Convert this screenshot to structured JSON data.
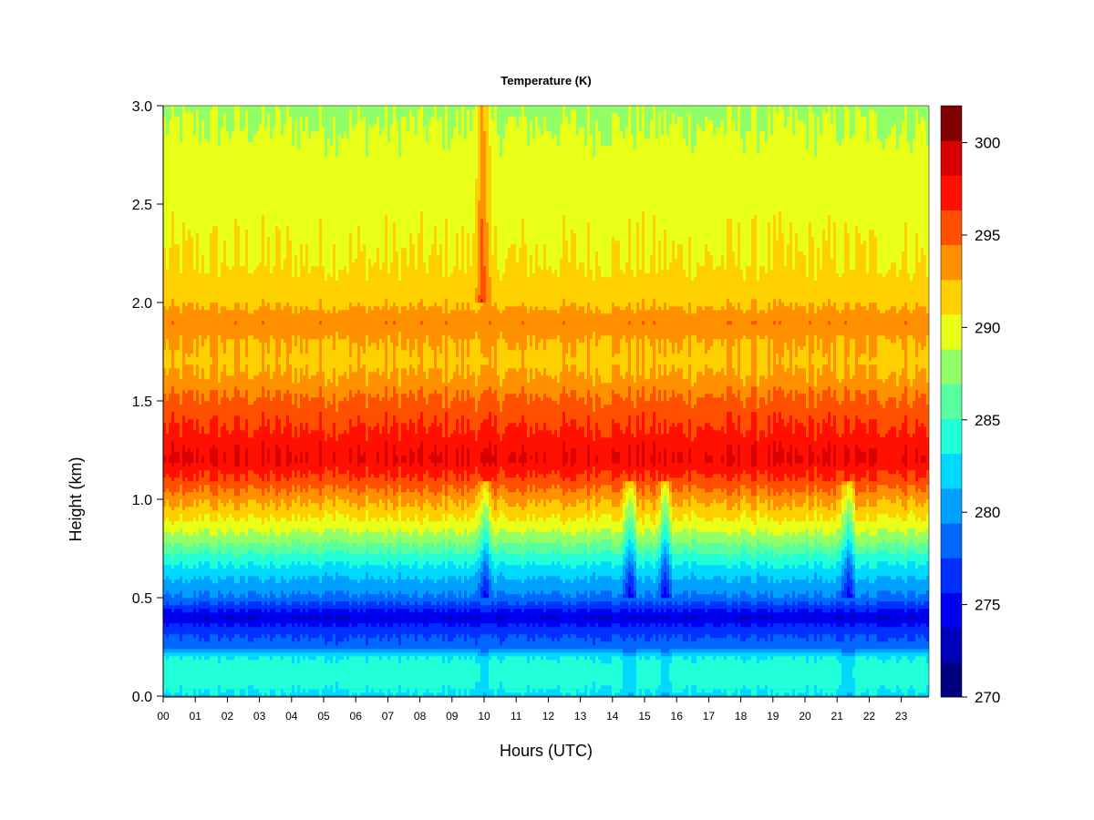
{
  "chart_data": {
    "type": "heatmap",
    "title": "Temperature (K)",
    "xlabel": "Hours (UTC)",
    "ylabel": "Height (km)",
    "x_ticks": [
      "00",
      "01",
      "02",
      "03",
      "04",
      "05",
      "06",
      "07",
      "08",
      "09",
      "10",
      "11",
      "12",
      "13",
      "14",
      "15",
      "16",
      "17",
      "18",
      "19",
      "20",
      "21",
      "22",
      "23"
    ],
    "x_range": [
      0,
      23.9
    ],
    "y_ticks": [
      "0.0",
      "0.5",
      "1.0",
      "1.5",
      "2.0",
      "2.5",
      "3.0"
    ],
    "y_range": [
      0,
      3.0
    ],
    "colorbar": {
      "range": [
        270,
        302
      ],
      "step": 2,
      "tick_labels": [
        "270",
        "275",
        "280",
        "285",
        "290",
        "295",
        "300"
      ],
      "colors": [
        "#00007F",
        "#0000B8",
        "#0000F0",
        "#0030FF",
        "#0068FF",
        "#00A0FF",
        "#00D8FF",
        "#20FFD8",
        "#58FFA0",
        "#90FF68",
        "#E8FF18",
        "#FFD000",
        "#FF9000",
        "#FF5000",
        "#FF1000",
        "#D80000",
        "#800000"
      ]
    },
    "height_profile_km_K": [
      [
        0.0,
        283.5
      ],
      [
        0.05,
        284.5
      ],
      [
        0.1,
        285.0
      ],
      [
        0.15,
        285.0
      ],
      [
        0.2,
        284.0
      ],
      [
        0.25,
        279.0
      ],
      [
        0.3,
        278.0
      ],
      [
        0.35,
        276.5
      ],
      [
        0.4,
        274.0
      ],
      [
        0.45,
        276.5
      ],
      [
        0.5,
        279.5
      ],
      [
        0.6,
        282.0
      ],
      [
        0.7,
        285.0
      ],
      [
        0.8,
        289.0
      ],
      [
        0.9,
        292.0
      ],
      [
        1.0,
        294.5
      ],
      [
        1.1,
        297.5
      ],
      [
        1.2,
        300.0
      ],
      [
        1.3,
        299.0
      ],
      [
        1.4,
        297.5
      ],
      [
        1.5,
        296.5
      ],
      [
        1.6,
        294.5
      ],
      [
        1.7,
        293.5
      ],
      [
        1.8,
        294.0
      ],
      [
        1.9,
        295.5
      ],
      [
        2.0,
        293.5
      ],
      [
        2.2,
        292.0
      ],
      [
        2.4,
        291.5
      ],
      [
        2.6,
        291.0
      ],
      [
        2.8,
        290.5
      ],
      [
        3.0,
        289.5
      ]
    ],
    "features": {
      "cold_vertical_streaks_hours": [
        10.0,
        14.5,
        15.6,
        21.3
      ],
      "warm_column_hours": [
        9.9
      ]
    }
  }
}
